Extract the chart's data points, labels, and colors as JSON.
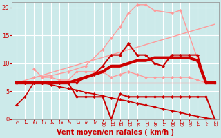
{
  "bg_color": "#cceaea",
  "grid_color": "#ffffff",
  "xlabel": "Vent moyen/en rafales ( km/h )",
  "xlabel_color": "#cc0000",
  "xlabel_fontsize": 7,
  "tick_color": "#cc0000",
  "xlim": [
    -0.5,
    23.5
  ],
  "ylim": [
    0,
    21
  ],
  "yticks": [
    0,
    5,
    10,
    15,
    20
  ],
  "xticks": [
    0,
    1,
    2,
    3,
    4,
    5,
    6,
    7,
    8,
    9,
    10,
    11,
    12,
    13,
    14,
    15,
    16,
    17,
    18,
    19,
    20,
    21,
    22,
    23
  ],
  "series": [
    {
      "x": [
        0,
        1,
        2,
        3,
        4,
        5,
        6,
        7,
        8,
        9,
        10,
        11,
        12,
        13,
        14,
        15,
        16,
        17,
        18,
        19,
        20,
        21,
        22,
        23
      ],
      "y": [
        6.5,
        6.5,
        6.5,
        6.5,
        6.5,
        6.5,
        6.5,
        6.5,
        6.5,
        6.5,
        6.5,
        6.5,
        6.5,
        6.5,
        6.5,
        6.5,
        6.5,
        6.5,
        6.5,
        6.5,
        6.5,
        6.5,
        6.5,
        6.5
      ],
      "color": "#ff9999",
      "lw": 1.0,
      "marker": null,
      "ms": 0
    },
    {
      "x": [
        0,
        23
      ],
      "y": [
        6.5,
        17.0
      ],
      "color": "#ff9999",
      "lw": 1.0,
      "marker": null,
      "ms": 0
    },
    {
      "x": [
        2,
        4,
        6,
        8,
        10,
        11,
        12,
        13,
        14,
        15,
        16,
        18,
        19,
        22
      ],
      "y": [
        7.5,
        7.8,
        8.5,
        9.5,
        12.5,
        14.5,
        16.5,
        19.0,
        20.5,
        20.5,
        19.5,
        19.0,
        19.5,
        6.5
      ],
      "color": "#ff9999",
      "lw": 1.0,
      "marker": "D",
      "ms": 2.0
    },
    {
      "x": [
        2,
        3,
        4,
        5,
        6,
        7,
        8,
        9,
        10,
        11,
        12,
        13,
        14,
        15,
        16,
        17,
        18,
        19,
        20,
        21,
        22
      ],
      "y": [
        9.0,
        7.5,
        7.5,
        7.0,
        7.0,
        8.5,
        8.5,
        8.5,
        8.5,
        7.5,
        8.0,
        8.5,
        8.0,
        7.5,
        7.5,
        7.5,
        7.5,
        7.5,
        7.5,
        7.0,
        6.5
      ],
      "color": "#ff9999",
      "lw": 1.0,
      "marker": "D",
      "ms": 2.0
    },
    {
      "x": [
        0,
        1,
        2,
        3,
        4,
        5,
        6,
        7,
        8,
        9,
        10,
        11,
        12,
        13,
        14,
        15,
        16,
        17,
        18,
        19,
        20,
        21,
        22,
        23
      ],
      "y": [
        2.5,
        4.0,
        6.5,
        6.5,
        6.2,
        5.8,
        5.5,
        5.2,
        4.8,
        4.5,
        4.2,
        3.8,
        3.5,
        3.2,
        2.8,
        2.5,
        2.2,
        1.8,
        1.5,
        1.2,
        0.8,
        0.5,
        0.2,
        0.0
      ],
      "color": "#cc0000",
      "lw": 1.2,
      "marker": "D",
      "ms": 2.0
    },
    {
      "x": [
        0,
        1,
        2,
        3,
        4,
        5,
        6,
        7,
        8,
        9,
        10,
        11,
        12,
        13,
        14,
        15,
        16,
        17,
        18,
        19,
        20,
        21,
        22,
        23
      ],
      "y": [
        6.5,
        6.5,
        6.5,
        6.5,
        6.5,
        6.5,
        6.5,
        4.0,
        4.0,
        4.0,
        4.0,
        0.0,
        4.5,
        4.0,
        4.0,
        4.0,
        4.0,
        4.0,
        4.0,
        4.0,
        4.0,
        4.0,
        4.0,
        0.0
      ],
      "color": "#cc0000",
      "lw": 1.5,
      "marker": "D",
      "ms": 2.0
    },
    {
      "x": [
        0,
        1,
        2,
        3,
        4,
        5,
        6,
        7,
        8,
        9,
        10,
        11,
        12,
        13,
        14,
        15,
        16,
        17,
        18,
        19,
        20,
        21,
        22,
        23
      ],
      "y": [
        6.5,
        6.5,
        6.5,
        6.5,
        6.5,
        6.5,
        6.5,
        6.5,
        7.5,
        8.0,
        9.5,
        11.5,
        11.5,
        13.5,
        11.5,
        11.5,
        10.0,
        9.5,
        11.5,
        11.5,
        11.5,
        11.5,
        6.5,
        6.5
      ],
      "color": "#cc0000",
      "lw": 1.5,
      "marker": "D",
      "ms": 2.0
    },
    {
      "x": [
        0,
        1,
        2,
        3,
        4,
        5,
        6,
        7,
        8,
        9,
        10,
        11,
        12,
        13,
        14,
        15,
        16,
        17,
        18,
        19,
        20,
        21,
        22,
        23
      ],
      "y": [
        6.5,
        6.5,
        6.5,
        6.5,
        6.5,
        6.5,
        6.5,
        7.0,
        7.5,
        8.0,
        8.5,
        9.5,
        9.5,
        10.0,
        10.5,
        10.5,
        11.0,
        11.0,
        11.0,
        11.0,
        11.0,
        10.5,
        6.5,
        6.5
      ],
      "color": "#cc0000",
      "lw": 3.0,
      "marker": null,
      "ms": 0
    }
  ]
}
